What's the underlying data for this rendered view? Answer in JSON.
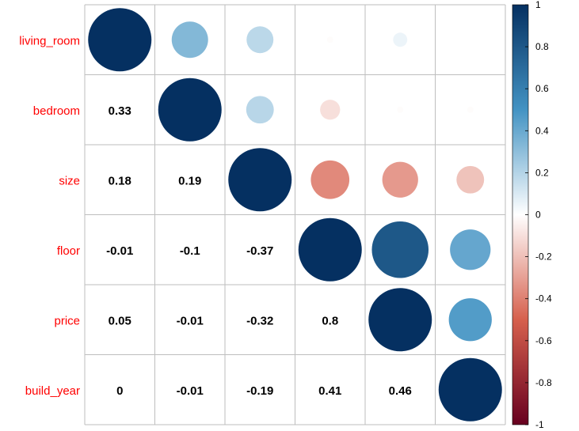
{
  "chart_data": {
    "type": "heatmap",
    "variables": [
      "living_room",
      "bedroom",
      "size",
      "floor",
      "price",
      "build_year"
    ],
    "matrix": [
      [
        1.0,
        0.33,
        0.18,
        -0.01,
        0.05,
        0.0
      ],
      [
        0.33,
        1.0,
        0.19,
        -0.1,
        -0.01,
        -0.01
      ],
      [
        0.18,
        0.19,
        1.0,
        -0.37,
        -0.32,
        -0.19
      ],
      [
        -0.01,
        -0.1,
        -0.37,
        1.0,
        0.8,
        0.41
      ],
      [
        0.05,
        -0.01,
        -0.32,
        0.8,
        1.0,
        0.46
      ],
      [
        0.0,
        -0.01,
        -0.19,
        0.41,
        0.46,
        1.0
      ]
    ],
    "upper_style": "circle",
    "lower_style": "number",
    "label_color": "#ff0000",
    "number_labels": [
      "0.33",
      "0.18",
      "0.19",
      "-0.01",
      "-0.1",
      "-0.37",
      "0.05",
      "-0.01",
      "-0.32",
      "0.8",
      "0",
      "-0.01",
      "-0.19",
      "0.41",
      "0.46"
    ],
    "colorbar": {
      "range": [
        -1,
        1
      ],
      "tick_labels": [
        "1",
        "0.8",
        "0.6",
        "0.4",
        "0.2",
        "0",
        "-0.2",
        "-0.4",
        "-0.6",
        "-0.8",
        "-1"
      ]
    },
    "color_scale": {
      "stops": [
        -1,
        -0.5,
        0,
        0.5,
        1
      ],
      "colors": [
        "#67001f",
        "#d6604d",
        "#ffffff",
        "#4393c3",
        "#053061"
      ]
    }
  }
}
